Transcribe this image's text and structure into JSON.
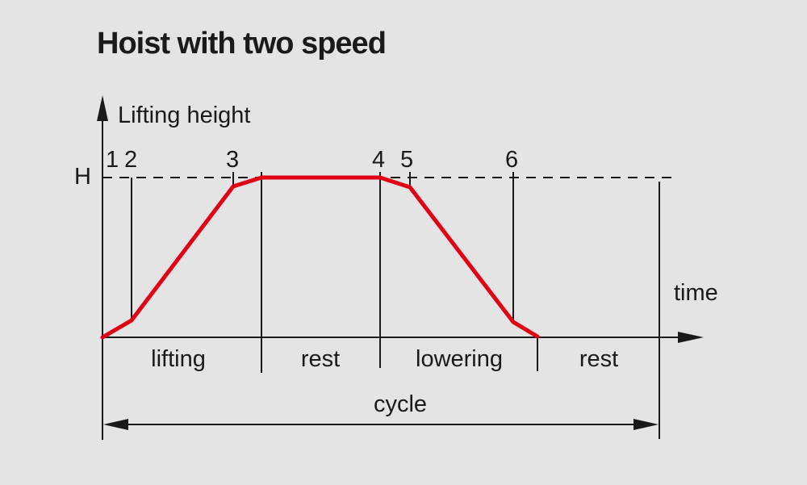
{
  "title": "Hoist with two speed",
  "y_axis_label": "Lifting height",
  "x_axis_label": "time",
  "h_label": "H",
  "point_labels": [
    "1",
    "2",
    "3",
    "4",
    "5",
    "6"
  ],
  "phases": [
    "lifting",
    "rest",
    "lowering",
    "rest"
  ],
  "cycle_label": "cycle",
  "colors": {
    "curve": "#e00012",
    "lines": "#1a1a1a",
    "background": "#e4e4e4"
  }
}
